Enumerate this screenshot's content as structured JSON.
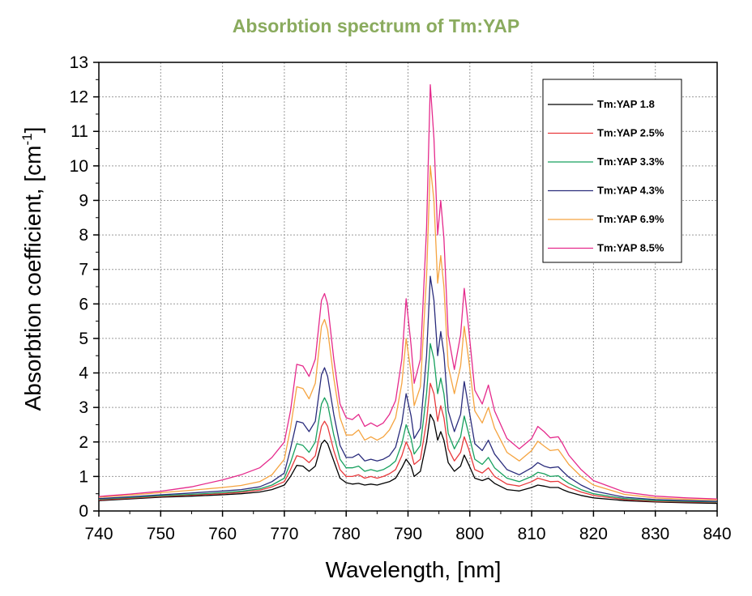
{
  "chart_data": {
    "type": "line",
    "title": "Absorbtion spectrum of Tm:YAP",
    "title_color": "#8aab5e",
    "xlabel": "Wavelength, [nm]",
    "ylabel_main": "Absorbtion coefficient, [cm",
    "ylabel_sup": "-1",
    "ylabel_end": "]",
    "xlim": [
      740,
      840
    ],
    "ylim": [
      0,
      13
    ],
    "x_ticks": [
      740,
      750,
      760,
      770,
      780,
      790,
      800,
      810,
      820,
      830,
      840
    ],
    "y_ticks": [
      0,
      1,
      2,
      3,
      4,
      5,
      6,
      7,
      8,
      9,
      10,
      11,
      12,
      13
    ],
    "grid": true,
    "legend_position": "top-right",
    "x": [
      740,
      745,
      750,
      755,
      760,
      763,
      766,
      768,
      770,
      771,
      772,
      773,
      774,
      775,
      776,
      776.5,
      777,
      778,
      779,
      780,
      781,
      782,
      783,
      784,
      785,
      786,
      787,
      788,
      789,
      789.7,
      790.5,
      791,
      792,
      793,
      793.6,
      794.2,
      794.8,
      795.3,
      795.8,
      796.5,
      797.5,
      798.5,
      799.1,
      799.8,
      800.8,
      802,
      803,
      804,
      806,
      808,
      810,
      811,
      812,
      813,
      814.3,
      815,
      816,
      818,
      820,
      825,
      830,
      835,
      840
    ],
    "series": [
      {
        "name": "Tm:YAP 1.8",
        "color": "#000000",
        "values": [
          0.3,
          0.35,
          0.4,
          0.43,
          0.47,
          0.5,
          0.55,
          0.62,
          0.75,
          1.0,
          1.32,
          1.3,
          1.15,
          1.3,
          1.95,
          2.05,
          1.95,
          1.45,
          0.95,
          0.82,
          0.78,
          0.8,
          0.75,
          0.78,
          0.75,
          0.8,
          0.85,
          0.95,
          1.25,
          1.5,
          1.3,
          1.0,
          1.15,
          2.0,
          2.8,
          2.6,
          2.05,
          2.3,
          2.05,
          1.4,
          1.15,
          1.3,
          1.62,
          1.35,
          0.95,
          0.88,
          0.95,
          0.8,
          0.62,
          0.58,
          0.68,
          0.75,
          0.72,
          0.68,
          0.68,
          0.62,
          0.55,
          0.45,
          0.38,
          0.3,
          0.26,
          0.24,
          0.22
        ]
      },
      {
        "name": "Tm:YAP 2.5%",
        "color": "#e8393c",
        "values": [
          0.32,
          0.37,
          0.42,
          0.46,
          0.5,
          0.54,
          0.6,
          0.7,
          0.85,
          1.2,
          1.6,
          1.55,
          1.4,
          1.6,
          2.45,
          2.6,
          2.45,
          1.75,
          1.2,
          1.0,
          1.0,
          1.05,
          0.95,
          1.0,
          0.95,
          1.0,
          1.08,
          1.2,
          1.6,
          2.0,
          1.7,
          1.35,
          1.5,
          2.6,
          3.7,
          3.4,
          2.6,
          3.05,
          2.7,
          1.8,
          1.45,
          1.7,
          2.15,
          1.8,
          1.2,
          1.1,
          1.25,
          1.0,
          0.78,
          0.72,
          0.85,
          0.95,
          0.9,
          0.85,
          0.86,
          0.78,
          0.68,
          0.55,
          0.45,
          0.33,
          0.28,
          0.26,
          0.25
        ]
      },
      {
        "name": "Tm:YAP 3.3%",
        "color": "#17a05e",
        "values": [
          0.34,
          0.39,
          0.44,
          0.48,
          0.53,
          0.57,
          0.64,
          0.75,
          0.95,
          1.4,
          1.95,
          1.9,
          1.7,
          2.0,
          3.1,
          3.28,
          3.1,
          2.2,
          1.5,
          1.25,
          1.25,
          1.3,
          1.15,
          1.2,
          1.15,
          1.2,
          1.3,
          1.45,
          1.95,
          2.5,
          2.1,
          1.65,
          1.9,
          3.4,
          4.85,
          4.4,
          3.4,
          3.85,
          3.4,
          2.25,
          1.8,
          2.15,
          2.75,
          2.25,
          1.5,
          1.35,
          1.55,
          1.25,
          0.95,
          0.85,
          1.0,
          1.12,
          1.08,
          1.0,
          1.02,
          0.92,
          0.8,
          0.62,
          0.5,
          0.36,
          0.3,
          0.28,
          0.26
        ]
      },
      {
        "name": "Tm:YAP 4.3%",
        "color": "#2a2c7c",
        "values": [
          0.36,
          0.41,
          0.47,
          0.52,
          0.58,
          0.62,
          0.7,
          0.85,
          1.1,
          1.8,
          2.6,
          2.55,
          2.3,
          2.6,
          3.95,
          4.15,
          3.9,
          2.8,
          1.9,
          1.55,
          1.55,
          1.65,
          1.45,
          1.5,
          1.45,
          1.5,
          1.6,
          1.85,
          2.55,
          3.4,
          2.75,
          2.1,
          2.4,
          4.5,
          6.8,
          6.1,
          4.5,
          5.2,
          4.55,
          2.9,
          2.3,
          2.8,
          3.75,
          3.0,
          1.95,
          1.75,
          2.05,
          1.65,
          1.2,
          1.05,
          1.25,
          1.4,
          1.3,
          1.25,
          1.28,
          1.15,
          0.98,
          0.75,
          0.58,
          0.4,
          0.33,
          0.3,
          0.28
        ]
      },
      {
        "name": "Tm:YAP 6.9%",
        "color": "#f5a440",
        "values": [
          0.4,
          0.46,
          0.53,
          0.6,
          0.68,
          0.74,
          0.85,
          1.05,
          1.5,
          2.4,
          3.6,
          3.55,
          3.25,
          3.7,
          5.35,
          5.55,
          5.25,
          3.85,
          2.7,
          2.2,
          2.2,
          2.35,
          2.05,
          2.15,
          2.05,
          2.15,
          2.35,
          2.7,
          3.7,
          5.0,
          4.0,
          3.05,
          3.6,
          6.8,
          10.0,
          9.0,
          6.6,
          7.4,
          6.5,
          4.2,
          3.4,
          4.2,
          5.35,
          4.4,
          2.9,
          2.55,
          3.0,
          2.4,
          1.7,
          1.45,
          1.75,
          2.02,
          1.88,
          1.75,
          1.78,
          1.6,
          1.35,
          1.0,
          0.75,
          0.48,
          0.38,
          0.34,
          0.32
        ]
      },
      {
        "name": "Tm:YAP 8.5%",
        "color": "#e52a8c",
        "values": [
          0.42,
          0.49,
          0.57,
          0.7,
          0.9,
          1.05,
          1.25,
          1.55,
          2.0,
          2.9,
          4.25,
          4.2,
          3.9,
          4.4,
          6.1,
          6.3,
          6.0,
          4.4,
          3.1,
          2.7,
          2.65,
          2.8,
          2.45,
          2.55,
          2.45,
          2.55,
          2.8,
          3.2,
          4.4,
          6.15,
          4.8,
          3.7,
          4.4,
          8.2,
          12.35,
          10.8,
          8.0,
          9.0,
          7.9,
          5.1,
          4.1,
          5.1,
          6.45,
          5.3,
          3.5,
          3.1,
          3.65,
          2.9,
          2.1,
          1.8,
          2.1,
          2.45,
          2.3,
          2.12,
          2.15,
          1.95,
          1.62,
          1.2,
          0.88,
          0.55,
          0.43,
          0.38,
          0.35
        ]
      }
    ]
  }
}
